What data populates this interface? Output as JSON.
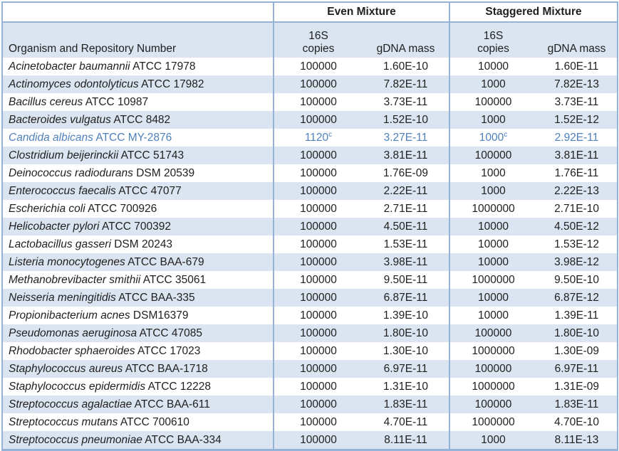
{
  "table": {
    "colors": {
      "row_shade": "#dbe5f1",
      "border_blue": "#95b3d7",
      "text": "#1f1f1f",
      "highlight_text": "#4f81bd"
    },
    "group_headers": {
      "even": "Even Mixture",
      "staggered": "Staggered Mixture"
    },
    "column_headers": {
      "organism": "Organism and Repository Number",
      "copies_line1": "16S",
      "copies_line2": "copies",
      "gdna": "gDNA mass"
    },
    "rows": [
      {
        "name": "Acinetobacter baumannii",
        "repo": "ATCC 17978",
        "even_copies": "100000",
        "even_sup": "",
        "even_gdna": "1.60E-10",
        "stag_copies": "10000",
        "stag_sup": "",
        "stag_gdna": "1.60E-11",
        "highlight": false
      },
      {
        "name": "Actinomyces odontolyticus",
        "repo": "ATCC 17982",
        "even_copies": "100000",
        "even_sup": "",
        "even_gdna": "7.82E-11",
        "stag_copies": "1000",
        "stag_sup": "",
        "stag_gdna": "7.82E-13",
        "highlight": false
      },
      {
        "name": "Bacillus cereus",
        "repo": "ATCC 10987",
        "even_copies": "100000",
        "even_sup": "",
        "even_gdna": "3.73E-11",
        "stag_copies": "100000",
        "stag_sup": "",
        "stag_gdna": "3.73E-11",
        "highlight": false
      },
      {
        "name": "Bacteroides vulgatus",
        "repo": "ATCC 8482",
        "even_copies": "100000",
        "even_sup": "",
        "even_gdna": "1.52E-10",
        "stag_copies": "1000",
        "stag_sup": "",
        "stag_gdna": "1.52E-12",
        "highlight": false
      },
      {
        "name": "Candida albicans",
        "repo": "ATCC MY-2876",
        "even_copies": "1120",
        "even_sup": "c",
        "even_gdna": "3.27E-11",
        "stag_copies": "1000",
        "stag_sup": "c",
        "stag_gdna": "2.92E-11",
        "highlight": true
      },
      {
        "name": "Clostridium beijerinckii",
        "repo": "ATCC 51743",
        "even_copies": "100000",
        "even_sup": "",
        "even_gdna": "3.81E-11",
        "stag_copies": "100000",
        "stag_sup": "",
        "stag_gdna": "3.81E-11",
        "highlight": false
      },
      {
        "name": "Deinococcus radiodurans",
        "repo": "DSM 20539",
        "even_copies": "100000",
        "even_sup": "",
        "even_gdna": "1.76E-09",
        "stag_copies": "1000",
        "stag_sup": "",
        "stag_gdna": "1.76E-11",
        "highlight": false
      },
      {
        "name": "Enterococcus faecalis",
        "repo": "ATCC 47077",
        "even_copies": "100000",
        "even_sup": "",
        "even_gdna": "2.22E-11",
        "stag_copies": "1000",
        "stag_sup": "",
        "stag_gdna": "2.22E-13",
        "highlight": false
      },
      {
        "name": "Escherichia coli",
        "repo": "ATCC 700926",
        "even_copies": "100000",
        "even_sup": "",
        "even_gdna": "2.71E-11",
        "stag_copies": "1000000",
        "stag_sup": "",
        "stag_gdna": "2.71E-10",
        "highlight": false
      },
      {
        "name": "Helicobacter pylori",
        "repo": "ATCC 700392",
        "even_copies": "100000",
        "even_sup": "",
        "even_gdna": "4.50E-11",
        "stag_copies": "10000",
        "stag_sup": "",
        "stag_gdna": "4.50E-12",
        "highlight": false
      },
      {
        "name": "Lactobacillus gasseri",
        "repo": "DSM 20243",
        "even_copies": "100000",
        "even_sup": "",
        "even_gdna": "1.53E-11",
        "stag_copies": "10000",
        "stag_sup": "",
        "stag_gdna": "1.53E-12",
        "highlight": false
      },
      {
        "name": "Listeria monocytogenes",
        "repo": "ATCC BAA-679",
        "even_copies": "100000",
        "even_sup": "",
        "even_gdna": "3.98E-11",
        "stag_copies": "10000",
        "stag_sup": "",
        "stag_gdna": "3.98E-12",
        "highlight": false
      },
      {
        "name": "Methanobrevibacter smithii",
        "repo": "ATCC 35061",
        "even_copies": "100000",
        "even_sup": "",
        "even_gdna": "9.50E-11",
        "stag_copies": "1000000",
        "stag_sup": "",
        "stag_gdna": "9.50E-10",
        "highlight": false
      },
      {
        "name": "Neisseria meningitidis",
        "repo": "ATCC BAA-335",
        "even_copies": "100000",
        "even_sup": "",
        "even_gdna": "6.87E-11",
        "stag_copies": "10000",
        "stag_sup": "",
        "stag_gdna": "6.87E-12",
        "highlight": false
      },
      {
        "name": "Propionibacterium acnes",
        "repo": "DSM16379",
        "even_copies": "100000",
        "even_sup": "",
        "even_gdna": "1.39E-10",
        "stag_copies": "10000",
        "stag_sup": "",
        "stag_gdna": "1.39E-11",
        "highlight": false
      },
      {
        "name": "Pseudomonas aeruginosa",
        "repo": "ATCC 47085",
        "even_copies": "100000",
        "even_sup": "",
        "even_gdna": "1.80E-10",
        "stag_copies": "100000",
        "stag_sup": "",
        "stag_gdna": "1.80E-10",
        "highlight": false
      },
      {
        "name": "Rhodobacter sphaeroides",
        "repo": "ATCC 17023",
        "even_copies": "100000",
        "even_sup": "",
        "even_gdna": "1.30E-10",
        "stag_copies": "1000000",
        "stag_sup": "",
        "stag_gdna": "1.30E-09",
        "highlight": false
      },
      {
        "name": "Staphylococcus aureus",
        "repo": "ATCC BAA-1718",
        "even_copies": "100000",
        "even_sup": "",
        "even_gdna": "6.97E-11",
        "stag_copies": "100000",
        "stag_sup": "",
        "stag_gdna": "6.97E-11",
        "highlight": false
      },
      {
        "name": "Staphylococcus epidermidis",
        "repo": "ATCC 12228",
        "even_copies": "100000",
        "even_sup": "",
        "even_gdna": "1.31E-10",
        "stag_copies": "1000000",
        "stag_sup": "",
        "stag_gdna": "1.31E-09",
        "highlight": false
      },
      {
        "name": "Streptococcus agalactiae",
        "repo": "ATCC BAA-611",
        "even_copies": "100000",
        "even_sup": "",
        "even_gdna": "1.83E-11",
        "stag_copies": "100000",
        "stag_sup": "",
        "stag_gdna": "1.83E-11",
        "highlight": false
      },
      {
        "name": "Streptococcus mutans",
        "repo": "ATCC 700610",
        "even_copies": "100000",
        "even_sup": "",
        "even_gdna": "4.70E-11",
        "stag_copies": "1000000",
        "stag_sup": "",
        "stag_gdna": "4.70E-10",
        "highlight": false
      },
      {
        "name": "Streptococcus pneumoniae",
        "repo": "ATCC BAA-334",
        "even_copies": "100000",
        "even_sup": "",
        "even_gdna": "8.11E-11",
        "stag_copies": "1000",
        "stag_sup": "",
        "stag_gdna": "8.11E-13",
        "highlight": false
      }
    ]
  }
}
